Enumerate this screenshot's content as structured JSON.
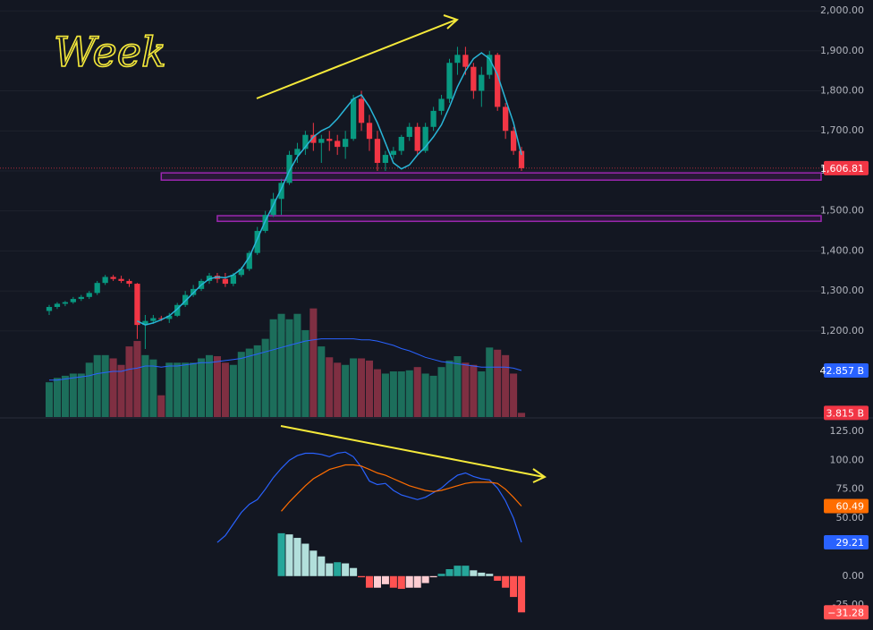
{
  "chart_data": [
    {
      "type": "candlestick",
      "annotation": "Week",
      "ylim": [
        985,
        2027
      ],
      "yticks": [
        {
          "value": 1200,
          "label": "1,200.00"
        },
        {
          "value": 1300,
          "label": "1,300.00"
        },
        {
          "value": 1400,
          "label": "1,400.00"
        },
        {
          "value": 1500,
          "label": "1,500.00"
        },
        {
          "value": 1600,
          "label": "1,600.00"
        },
        {
          "value": 1700,
          "label": "1,700.00"
        },
        {
          "value": 1800,
          "label": "1,800.00"
        },
        {
          "value": 1900,
          "label": "1,900.00"
        },
        {
          "value": 2000,
          "label": "2,000.00"
        }
      ],
      "grid": true,
      "up_color": "#089981",
      "down_color": "#f23645",
      "open": [
        1250,
        1260,
        1268,
        1272,
        1280,
        1285,
        1295,
        1320,
        1335,
        1330,
        1325,
        1318,
        1215,
        1225,
        1232,
        1230,
        1238,
        1265,
        1290,
        1305,
        1325,
        1338,
        1330,
        1318,
        1340,
        1355,
        1395,
        1450,
        1490,
        1530,
        1570,
        1640,
        1655,
        1690,
        1670,
        1680,
        1675,
        1660,
        1680,
        1780,
        1720,
        1680,
        1620,
        1640,
        1650,
        1685,
        1710,
        1650,
        1710,
        1750,
        1780,
        1870,
        1890,
        1860,
        1800,
        1840,
        1890,
        1760,
        1700,
        1650
      ],
      "high": [
        1265,
        1272,
        1275,
        1285,
        1290,
        1300,
        1325,
        1340,
        1340,
        1338,
        1330,
        1320,
        1240,
        1240,
        1238,
        1245,
        1270,
        1300,
        1315,
        1330,
        1345,
        1345,
        1345,
        1345,
        1360,
        1400,
        1460,
        1500,
        1545,
        1580,
        1650,
        1670,
        1700,
        1720,
        1690,
        1700,
        1690,
        1700,
        1790,
        1800,
        1740,
        1700,
        1650,
        1660,
        1690,
        1720,
        1720,
        1720,
        1760,
        1790,
        1880,
        1910,
        1910,
        1870,
        1860,
        1900,
        1895,
        1770,
        1710,
        1660
      ],
      "low": [
        1240,
        1255,
        1262,
        1268,
        1275,
        1280,
        1290,
        1315,
        1325,
        1320,
        1310,
        1180,
        1155,
        1218,
        1225,
        1220,
        1235,
        1260,
        1285,
        1300,
        1318,
        1320,
        1310,
        1312,
        1335,
        1350,
        1390,
        1445,
        1485,
        1490,
        1565,
        1620,
        1640,
        1650,
        1620,
        1650,
        1640,
        1630,
        1675,
        1700,
        1650,
        1600,
        1600,
        1630,
        1640,
        1675,
        1640,
        1645,
        1700,
        1740,
        1770,
        1840,
        1840,
        1780,
        1760,
        1830,
        1750,
        1680,
        1640,
        1600
      ],
      "close": [
        1260,
        1268,
        1272,
        1280,
        1285,
        1295,
        1320,
        1335,
        1330,
        1325,
        1318,
        1215,
        1225,
        1232,
        1230,
        1238,
        1265,
        1290,
        1305,
        1325,
        1338,
        1330,
        1318,
        1340,
        1355,
        1395,
        1450,
        1490,
        1530,
        1570,
        1640,
        1655,
        1690,
        1670,
        1680,
        1675,
        1660,
        1680,
        1780,
        1720,
        1680,
        1620,
        1640,
        1650,
        1685,
        1710,
        1650,
        1710,
        1750,
        1780,
        1870,
        1890,
        1860,
        1800,
        1840,
        1890,
        1760,
        1700,
        1650,
        1606.81
      ],
      "ma": {
        "color": "#29b6d8",
        "values": [
          null,
          null,
          null,
          null,
          null,
          null,
          null,
          null,
          null,
          null,
          null,
          1225,
          1215,
          1220,
          1228,
          1238,
          1255,
          1275,
          1295,
          1315,
          1330,
          1335,
          1333,
          1340,
          1355,
          1385,
          1430,
          1475,
          1515,
          1555,
          1600,
          1635,
          1660,
          1685,
          1700,
          1710,
          1730,
          1755,
          1780,
          1790,
          1760,
          1720,
          1670,
          1620,
          1605,
          1615,
          1640,
          1660,
          1685,
          1715,
          1760,
          1810,
          1850,
          1880,
          1895,
          1880,
          1840,
          1780,
          1720,
          1640
        ]
      },
      "last_price": {
        "value": 1606.81,
        "label": "1,606.81"
      },
      "zones": [
        {
          "from": 1577,
          "to": 1595,
          "start": 14
        },
        {
          "from": 1474,
          "to": 1488,
          "start": 21
        }
      ],
      "zone_color": "#9c27b0",
      "volume": {
        "ylim": [
          0,
          384
        ],
        "up_color": "#1c6e5b",
        "down_color": "#7f2f42",
        "values": [
          32,
          36,
          38,
          40,
          40,
          50,
          57,
          57,
          54,
          48,
          65,
          70,
          57,
          53,
          20,
          50,
          50,
          50,
          50,
          54,
          57,
          56,
          50,
          48,
          60,
          63,
          66,
          72,
          90,
          95,
          90,
          95,
          80,
          100,
          65,
          55,
          50,
          48,
          54,
          54,
          52,
          44,
          40,
          42,
          42,
          43,
          46,
          40,
          38,
          46,
          52,
          56,
          50,
          48,
          42,
          64,
          62,
          57,
          40,
          3.815
        ],
        "ma": {
          "color": "#2962ff",
          "values": [
            34,
            34,
            35,
            36,
            37,
            38,
            40,
            41,
            42,
            42,
            44,
            45,
            47,
            47,
            46,
            47,
            47,
            48,
            49,
            50,
            50,
            51,
            52,
            53,
            54,
            56,
            58,
            60,
            62,
            64,
            66,
            68,
            70,
            71,
            72,
            72,
            72,
            72,
            72,
            71,
            71,
            70,
            68,
            66,
            63,
            61,
            58,
            55,
            53,
            51,
            50,
            49,
            48,
            47,
            46,
            46,
            46,
            46,
            45,
            42.857
          ]
        },
        "last_labels": [
          {
            "value": 42.857,
            "label": "42.857 B",
            "color": "#2962ff"
          },
          {
            "value": 3.815,
            "label": "3.815 B",
            "color": "#f23645"
          }
        ]
      }
    },
    {
      "type": "macd",
      "ylim": [
        -46.5,
        134.2
      ],
      "yticks": [
        {
          "value": -25,
          "label": "-25.00"
        },
        {
          "value": 0,
          "label": "0.00"
        },
        {
          "value": 50,
          "label": "50.00"
        },
        {
          "value": 75,
          "label": "75.00"
        },
        {
          "value": 100,
          "label": "100.00"
        },
        {
          "value": 125,
          "label": "125.00"
        }
      ],
      "histogram": {
        "colors": [
          "#26a69a",
          "#b2dfdb",
          "#ffcdd2",
          "#ff5252"
        ],
        "values": [
          null,
          null,
          null,
          null,
          null,
          null,
          null,
          null,
          null,
          null,
          null,
          null,
          null,
          null,
          null,
          null,
          null,
          null,
          null,
          null,
          null,
          null,
          null,
          null,
          null,
          null,
          null,
          null,
          null,
          37,
          36,
          33,
          28,
          22,
          17,
          11,
          12,
          11,
          7,
          -1,
          -10,
          -10,
          -7,
          -10,
          -11,
          -10,
          -10,
          -6,
          -1,
          2,
          6,
          9,
          9,
          5,
          3,
          2,
          -4,
          -10,
          -18,
          -31.28
        ],
        "last_label": {
          "value": -31.28,
          "label": "−31.28",
          "color": "#ff5252"
        }
      },
      "lines": [
        {
          "color": "#2962ff",
          "values": [
            null,
            null,
            null,
            null,
            null,
            null,
            null,
            null,
            null,
            null,
            null,
            null,
            null,
            null,
            null,
            null,
            null,
            null,
            null,
            null,
            null,
            29,
            35,
            45,
            55,
            62,
            66,
            75,
            85,
            93,
            100,
            104,
            106,
            106,
            105,
            103,
            106,
            107,
            103,
            94,
            82,
            79,
            80,
            74,
            70,
            68,
            66,
            68,
            72,
            76,
            82,
            87,
            89,
            86,
            84,
            83,
            76,
            65,
            50,
            29.21
          ],
          "last_label": {
            "value": 29.21,
            "label": "29.21"
          }
        },
        {
          "color": "#ff6d00",
          "values": [
            null,
            null,
            null,
            null,
            null,
            null,
            null,
            null,
            null,
            null,
            null,
            null,
            null,
            null,
            null,
            null,
            null,
            null,
            null,
            null,
            null,
            null,
            null,
            null,
            null,
            null,
            null,
            null,
            null,
            56,
            64,
            71,
            78,
            84,
            88,
            92,
            94,
            96,
            96,
            95,
            92,
            89,
            87,
            84,
            81,
            78,
            76,
            74,
            73,
            74,
            76,
            78,
            80,
            81,
            81,
            81,
            80,
            75,
            68,
            60.49
          ],
          "last_label": {
            "value": 60.49,
            "label": "60.49"
          }
        }
      ]
    }
  ]
}
